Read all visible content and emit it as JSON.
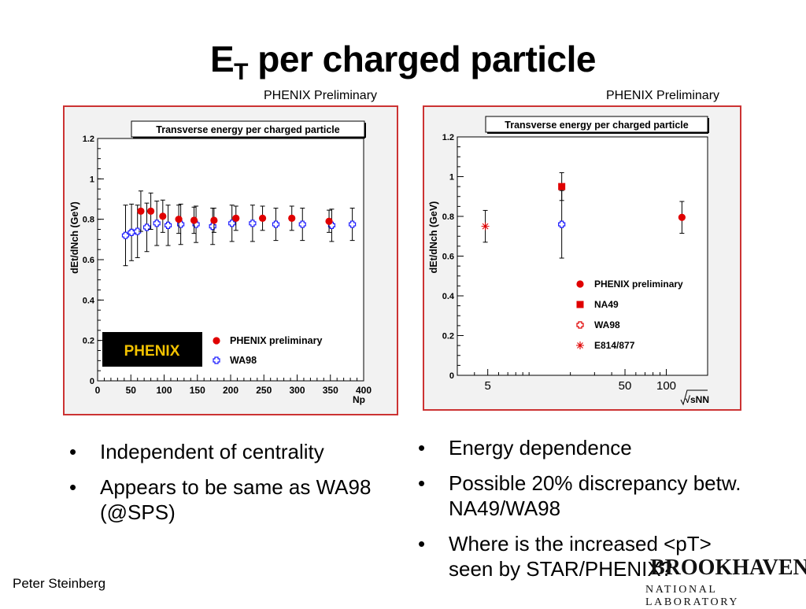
{
  "title": {
    "main": "E",
    "sub": "T",
    "rest": " per charged particle"
  },
  "left_prelim": "PHENIX Preliminary",
  "right_prelim": "PHENIX Preliminary",
  "colors": {
    "phenix": "#e00000",
    "wa98": "#1a1aff",
    "frame": "#cc3333"
  },
  "left_bullets": [
    "Independent of centrality",
    "Appears to be same as WA98 (@SPS)"
  ],
  "right_bullets": [
    "Energy dependence",
    "Possible 20% discrepancy betw. NA49/WA98",
    "Where is the increased <pT> seen by STAR/PHENIX?"
  ],
  "footer": {
    "author": "Peter Steinberg",
    "logo_main": "BROOKHAVEN",
    "logo_sub": "NATIONAL LABORATORY"
  },
  "chart_data": [
    {
      "type": "scatter",
      "title": "Transverse energy per charged particle",
      "xlabel": "Np",
      "ylabel": "dEt/dNch (GeV)",
      "xlim": [
        0,
        400
      ],
      "ylim": [
        0,
        1.2
      ],
      "xticks": [
        "0",
        "50",
        "100",
        "150",
        "200",
        "250",
        "300",
        "350",
        "400"
      ],
      "yticks": [
        "0",
        "0.2",
        "0.4",
        "0.6",
        "0.8",
        "1",
        "1.2"
      ],
      "legend": [
        "PHENIX preliminary",
        "WA98"
      ],
      "logo_text": "PHENIX",
      "series": [
        {
          "name": "PHENIX preliminary",
          "marker": "circle",
          "x": [
            65,
            80,
            98,
            122,
            145,
            175,
            208,
            248,
            292,
            348
          ],
          "y": [
            0.84,
            0.84,
            0.815,
            0.8,
            0.795,
            0.795,
            0.805,
            0.805,
            0.805,
            0.79
          ],
          "err": [
            0.1,
            0.09,
            0.08,
            0.07,
            0.065,
            0.06,
            0.06,
            0.06,
            0.06,
            0.055
          ]
        },
        {
          "name": "WA98",
          "marker": "cross",
          "x": [
            42,
            51,
            60,
            74,
            89,
            106,
            125,
            148,
            173,
            202,
            233,
            268,
            308,
            352,
            383
          ],
          "y": [
            0.72,
            0.735,
            0.74,
            0.76,
            0.78,
            0.77,
            0.775,
            0.775,
            0.765,
            0.78,
            0.78,
            0.775,
            0.775,
            0.77,
            0.775
          ],
          "err": [
            0.15,
            0.14,
            0.13,
            0.12,
            0.11,
            0.1,
            0.1,
            0.09,
            0.09,
            0.09,
            0.09,
            0.08,
            0.08,
            0.08,
            0.08
          ]
        }
      ]
    },
    {
      "type": "scatter",
      "title": "Transverse energy per charged particle",
      "xlabel": "√sNN",
      "ylabel": "dEt/dNch (GeV)",
      "xscale": "log",
      "xlim": [
        3,
        200
      ],
      "ylim": [
        0,
        1.2
      ],
      "xticks": [
        "5",
        "50",
        "100"
      ],
      "yticks": [
        "0",
        "0.2",
        "0.4",
        "0.6",
        "0.8",
        "1",
        "1.2"
      ],
      "legend": [
        "PHENIX preliminary",
        "NA49",
        "WA98",
        "E814/877"
      ],
      "series": [
        {
          "name": "PHENIX preliminary",
          "marker": "circle",
          "x": [
            130
          ],
          "y": [
            0.795
          ],
          "err": [
            0.08
          ]
        },
        {
          "name": "NA49",
          "marker": "square",
          "x": [
            17.3
          ],
          "y": [
            0.95
          ],
          "err": [
            0.07
          ]
        },
        {
          "name": "WA98",
          "marker": "cross",
          "x": [
            17.3
          ],
          "y": [
            0.76
          ],
          "err": [
            0.17
          ]
        },
        {
          "name": "E814/877",
          "marker": "star",
          "x": [
            4.8
          ],
          "y": [
            0.75
          ],
          "err": [
            0.08
          ]
        }
      ]
    }
  ]
}
